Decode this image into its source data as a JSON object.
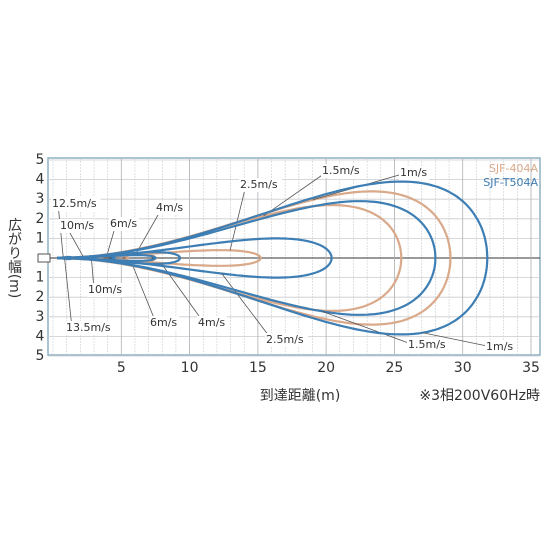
{
  "chart_data": {
    "type": "contour",
    "x_label": "到達距離(m)",
    "y_label": "広がり幅(m)",
    "note": "※3相200V60Hz時",
    "xlim": [
      0,
      35
    ],
    "xticks": [
      5,
      10,
      15,
      20,
      25,
      30,
      35
    ],
    "ylim": [
      -5,
      5
    ],
    "yticks": [
      5,
      4,
      3,
      2,
      1,
      {
        "value": -1,
        "label": "1"
      },
      {
        "value": -2,
        "label": "2"
      },
      {
        "value": -3,
        "label": "3"
      },
      {
        "value": -4,
        "label": "4"
      },
      {
        "value": -5,
        "label": "5"
      }
    ],
    "grid": true,
    "legend": "top-right",
    "series": [
      {
        "name": "SJF-404A",
        "color": "#d9a98a",
        "side": "top",
        "contours": [
          {
            "label": "12.5m/s",
            "reach": 1.2,
            "width": 0.05
          },
          {
            "label": "10m/s",
            "reach": 3.5,
            "width": 0.08
          },
          {
            "label": "6m/s",
            "reach": 5.5,
            "width": 0.12
          },
          {
            "label": "4m/s",
            "reach": 7.5,
            "width": 0.2
          },
          {
            "label": "2.5m/s",
            "reach": 15.2,
            "width": 0.4
          },
          {
            "label": "1.5m/s",
            "reach": 25.5,
            "width": 2.7
          },
          {
            "label": "1m/s",
            "reach": 29.1,
            "width": 3.4
          }
        ]
      },
      {
        "name": "SJF-T504A",
        "color": "#3d7eb4",
        "side": "bottom",
        "contours": [
          {
            "label": "13.5m/s",
            "reach": 1.4,
            "width": 0.05
          },
          {
            "label": "10m/s",
            "reach": 4.5,
            "width": 0.1
          },
          {
            "label": "6m/s",
            "reach": 7.5,
            "width": 0.15
          },
          {
            "label": "4m/s",
            "reach": 9.3,
            "width": 0.3
          },
          {
            "label": "2.5m/s",
            "reach": 20.4,
            "width": 1.0
          },
          {
            "label": "1.5m/s",
            "reach": 28,
            "width": 2.9
          },
          {
            "label": "1m/s",
            "reach": 31.8,
            "width": 3.9
          }
        ]
      }
    ]
  }
}
